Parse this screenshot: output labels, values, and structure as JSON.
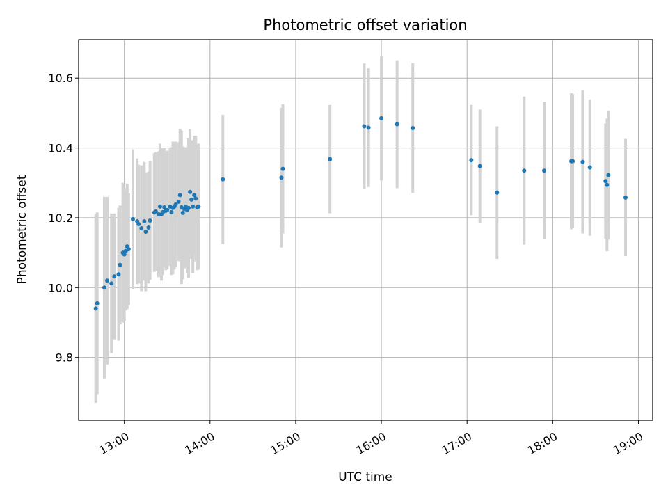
{
  "chart_data": {
    "type": "scatter",
    "title": "Photometric offset variation",
    "xlabel": "UTC time",
    "ylabel": "Photometric offset",
    "xlim": [
      "12:28",
      "19:10"
    ],
    "ylim": [
      9.62,
      10.71
    ],
    "x_ticks": [
      "13:00",
      "14:00",
      "15:00",
      "16:00",
      "17:00",
      "18:00",
      "19:00"
    ],
    "y_ticks": [
      "9.8",
      "10.0",
      "10.2",
      "10.4",
      "10.6"
    ],
    "grid": true,
    "colors": {
      "point": "#1f77b4",
      "errorbar": "#d3d3d3",
      "grid": "#b0b0b0",
      "axes": "#000000"
    },
    "series": [
      {
        "points": [
          {
            "x": "12:40",
            "y": 9.94,
            "err": 0.27
          },
          {
            "x": "12:41",
            "y": 9.955,
            "err": 0.26
          },
          {
            "x": "12:46",
            "y": 10.0,
            "err": 0.26
          },
          {
            "x": "12:48",
            "y": 10.02,
            "err": 0.24
          },
          {
            "x": "12:51",
            "y": 10.012,
            "err": 0.2
          },
          {
            "x": "12:53",
            "y": 10.032,
            "err": 0.18
          },
          {
            "x": "12:56",
            "y": 10.038,
            "err": 0.19
          },
          {
            "x": "12:57",
            "y": 10.065,
            "err": 0.17
          },
          {
            "x": "12:59",
            "y": 10.1,
            "err": 0.2
          },
          {
            "x": "13:00",
            "y": 10.095,
            "err": 0.19
          },
          {
            "x": "13:01",
            "y": 10.105,
            "err": 0.17
          },
          {
            "x": "13:02",
            "y": 10.118,
            "err": 0.18
          },
          {
            "x": "13:03",
            "y": 10.11,
            "err": 0.16
          },
          {
            "x": "13:06",
            "y": 10.196,
            "err": 0.2
          },
          {
            "x": "13:09",
            "y": 10.19,
            "err": 0.18
          },
          {
            "x": "13:10",
            "y": 10.182,
            "err": 0.17
          },
          {
            "x": "13:12",
            "y": 10.17,
            "err": 0.18
          },
          {
            "x": "13:14",
            "y": 10.19,
            "err": 0.17
          },
          {
            "x": "13:15",
            "y": 10.16,
            "err": 0.17
          },
          {
            "x": "13:17",
            "y": 10.172,
            "err": 0.16
          },
          {
            "x": "13:18",
            "y": 10.192,
            "err": 0.17
          },
          {
            "x": "13:21",
            "y": 10.215,
            "err": 0.17
          },
          {
            "x": "13:22",
            "y": 10.218,
            "err": 0.17
          },
          {
            "x": "13:24",
            "y": 10.21,
            "err": 0.18
          },
          {
            "x": "13:25",
            "y": 10.232,
            "err": 0.18
          },
          {
            "x": "13:26",
            "y": 10.21,
            "err": 0.19
          },
          {
            "x": "13:27",
            "y": 10.216,
            "err": 0.18
          },
          {
            "x": "13:28",
            "y": 10.23,
            "err": 0.17
          },
          {
            "x": "13:29",
            "y": 10.22,
            "err": 0.17
          },
          {
            "x": "13:30",
            "y": 10.222,
            "err": 0.17
          },
          {
            "x": "13:32",
            "y": 10.232,
            "err": 0.17
          },
          {
            "x": "13:33",
            "y": 10.216,
            "err": 0.18
          },
          {
            "x": "13:34",
            "y": 10.228,
            "err": 0.19
          },
          {
            "x": "13:35",
            "y": 10.232,
            "err": 0.18
          },
          {
            "x": "13:36",
            "y": 10.238,
            "err": 0.18
          },
          {
            "x": "13:38",
            "y": 10.246,
            "err": 0.17
          },
          {
            "x": "13:39",
            "y": 10.265,
            "err": 0.19
          },
          {
            "x": "13:40",
            "y": 10.23,
            "err": 0.22
          },
          {
            "x": "13:41",
            "y": 10.214,
            "err": 0.19
          },
          {
            "x": "13:42",
            "y": 10.225,
            "err": 0.17
          },
          {
            "x": "13:43",
            "y": 10.232,
            "err": 0.17
          },
          {
            "x": "13:44",
            "y": 10.222,
            "err": 0.18
          },
          {
            "x": "13:45",
            "y": 10.228,
            "err": 0.2
          },
          {
            "x": "13:46",
            "y": 10.274,
            "err": 0.18
          },
          {
            "x": "13:47",
            "y": 10.252,
            "err": 0.17
          },
          {
            "x": "13:48",
            "y": 10.232,
            "err": 0.19
          },
          {
            "x": "13:49",
            "y": 10.265,
            "err": 0.17
          },
          {
            "x": "13:50",
            "y": 10.255,
            "err": 0.18
          },
          {
            "x": "13:51",
            "y": 10.23,
            "err": 0.18
          },
          {
            "x": "13:52",
            "y": 10.232,
            "err": 0.18
          },
          {
            "x": "14:09",
            "y": 10.31,
            "err": 0.185
          },
          {
            "x": "14:50",
            "y": 10.315,
            "err": 0.2
          },
          {
            "x": "14:51",
            "y": 10.34,
            "err": 0.185
          },
          {
            "x": "15:24",
            "y": 10.368,
            "err": 0.155
          },
          {
            "x": "15:48",
            "y": 10.462,
            "err": 0.18
          },
          {
            "x": "15:51",
            "y": 10.458,
            "err": 0.17
          },
          {
            "x": "16:00",
            "y": 10.485,
            "err": 0.178
          },
          {
            "x": "16:11",
            "y": 10.468,
            "err": 0.183
          },
          {
            "x": "16:22",
            "y": 10.457,
            "err": 0.186
          },
          {
            "x": "17:03",
            "y": 10.365,
            "err": 0.158
          },
          {
            "x": "17:09",
            "y": 10.348,
            "err": 0.162
          },
          {
            "x": "17:21",
            "y": 10.272,
            "err": 0.19
          },
          {
            "x": "17:40",
            "y": 10.335,
            "err": 0.212
          },
          {
            "x": "17:54",
            "y": 10.335,
            "err": 0.197
          },
          {
            "x": "18:13",
            "y": 10.362,
            "err": 0.195
          },
          {
            "x": "18:14",
            "y": 10.362,
            "err": 0.192
          },
          {
            "x": "18:21",
            "y": 10.36,
            "err": 0.205
          },
          {
            "x": "18:26",
            "y": 10.344,
            "err": 0.195
          },
          {
            "x": "18:37",
            "y": 10.305,
            "err": 0.165
          },
          {
            "x": "18:38",
            "y": 10.294,
            "err": 0.19
          },
          {
            "x": "18:39",
            "y": 10.322,
            "err": 0.185
          },
          {
            "x": "18:51",
            "y": 10.258,
            "err": 0.168
          }
        ]
      }
    ]
  }
}
